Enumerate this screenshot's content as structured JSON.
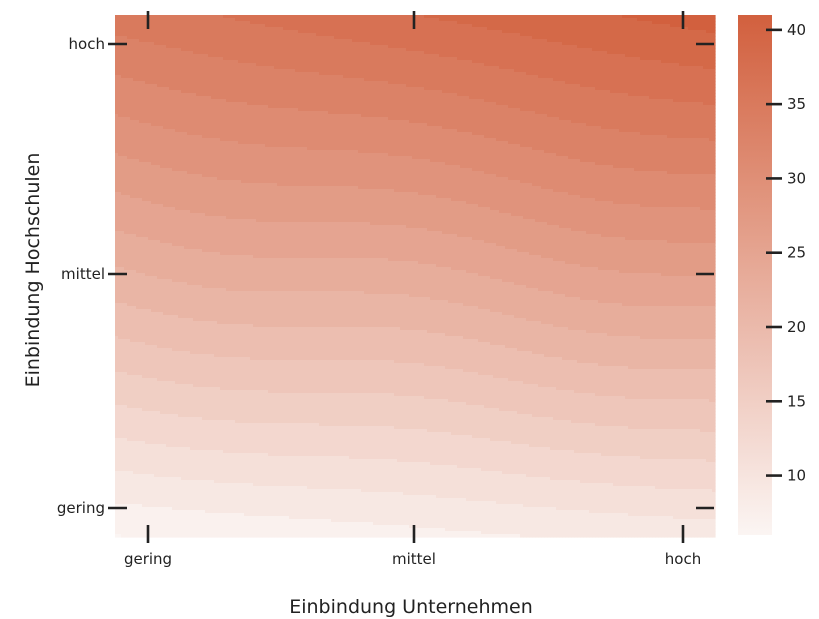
{
  "chart_data": {
    "type": "heatmap",
    "subtype": "filled-contour",
    "xlabel": "Einbindung Unternehmen",
    "ylabel": "Einbindung Hochschulen",
    "x_categories": [
      "gering",
      "mittel",
      "hoch"
    ],
    "y_categories": [
      "gering",
      "mittel",
      "hoch"
    ],
    "colorbar": {
      "ticks": [
        10,
        15,
        20,
        25,
        30,
        35,
        40
      ],
      "range": [
        6,
        41
      ],
      "color_low": "#fbf5f3",
      "color_high": "#d2603e"
    },
    "grid": false,
    "levels": [
      6,
      8,
      10,
      12,
      14,
      16,
      18,
      20,
      22,
      24,
      26,
      28,
      30,
      32,
      34,
      36,
      38,
      40,
      42
    ],
    "z_corners": {
      "gering_gering": 6,
      "hoch_gering": 9,
      "gering_hoch": 35,
      "hoch_hoch": 41
    }
  }
}
